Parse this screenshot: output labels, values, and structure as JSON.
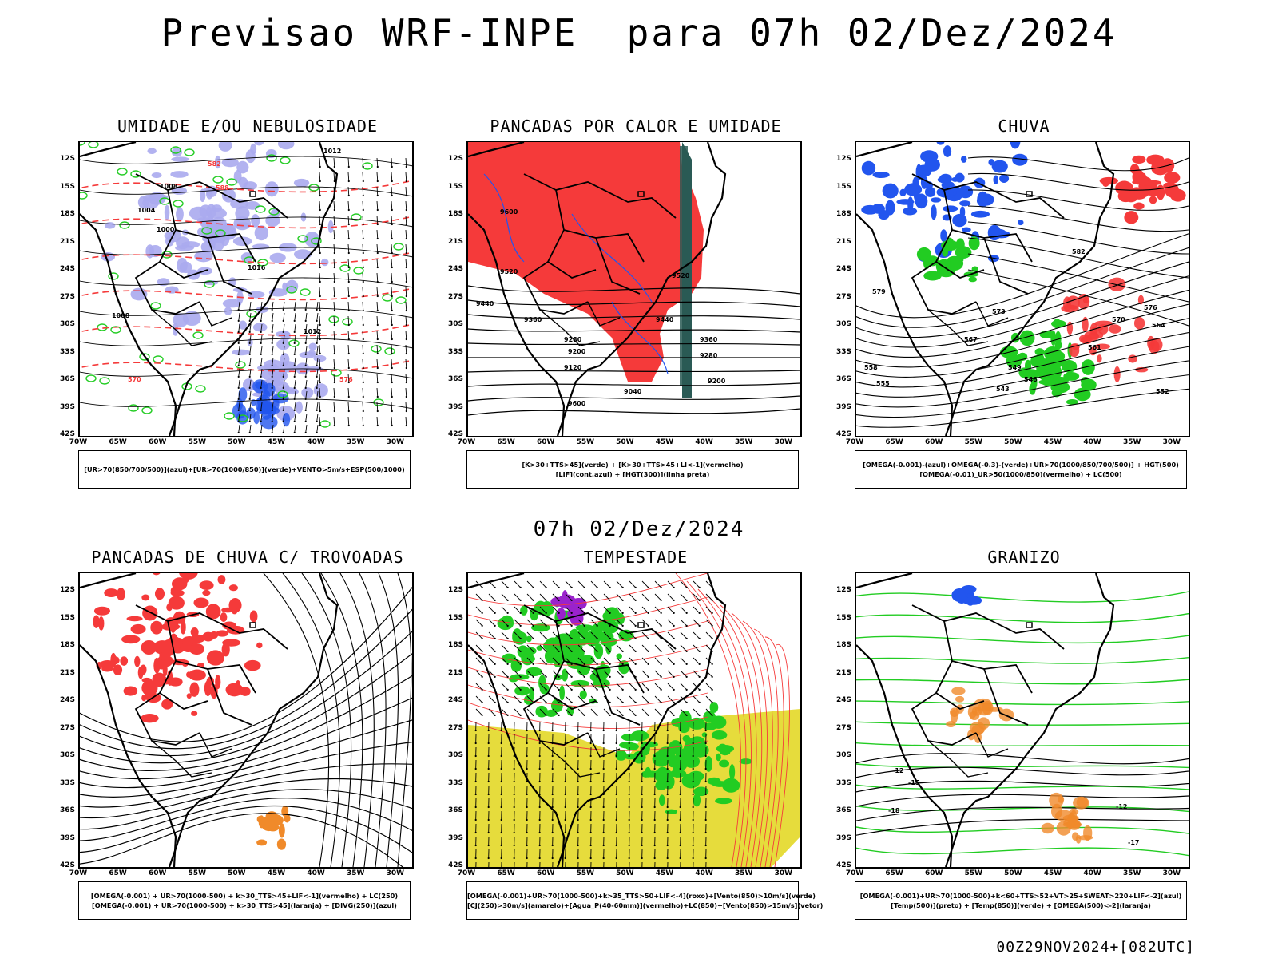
{
  "header": {
    "title": "Previsao WRF-INPE  para 07h 02/Dez/2024",
    "mid_title": "07h 02/Dez/2024",
    "footer": "00Z29NOV2024+[082UTC]"
  },
  "axes": {
    "lat_labels": [
      "12S",
      "15S",
      "18S",
      "21S",
      "24S",
      "27S",
      "30S",
      "33S",
      "36S",
      "39S",
      "42S"
    ],
    "lon_labels": [
      "70W",
      "65W",
      "60W",
      "55W",
      "50W",
      "45W",
      "40W",
      "35W",
      "30W"
    ]
  },
  "colors": {
    "red": "#f53a3a",
    "green": "#22cc22",
    "blue": "#2255ee",
    "lavender": "#aaaaee",
    "yellow": "#e6dc3c",
    "orange": "#f08a2a",
    "purple": "#9a22cc",
    "darkteal": "#2a5a55"
  },
  "panels": [
    {
      "title": "UMIDADE E/OU NEBULOSIDADE",
      "legend": [
        "[UR>70(850/700/500)](azul)+[UR>70(1000/850)](verde)+VENTO>5m/s+ESP(500/1000)"
      ],
      "contour_labels": [
        "1012",
        "1008",
        "1004",
        "1000",
        "1016",
        "1012",
        "1008",
        "570",
        "576",
        "582",
        "588"
      ]
    },
    {
      "title": "PANCADAS POR CALOR E UMIDADE",
      "legend": [
        "[K>30+TTS>45](verde) + [K>30+TTS>45+LI<-1](vermelho)",
        "[LIF](cont.azul) + [HGT(300)](linha preta)"
      ],
      "contour_labels": [
        "9600",
        "9520",
        "9440",
        "9360",
        "9280",
        "9200",
        "9120",
        "9040",
        "9600",
        "9520",
        "9440",
        "9360",
        "9280",
        "9200"
      ]
    },
    {
      "title": "CHUVA",
      "legend": [
        "[OMEGA(-0.001)-(azul)+OMEGA(-0.3)-(verde)+UR>70(1000/850/700/500)] + HGT(500)",
        "[OMEGA(-0.01)_UR>50(1000/850)(vermelho) + LC(500)"
      ],
      "contour_labels": [
        "582",
        "579",
        "576",
        "573",
        "570",
        "567",
        "564",
        "561",
        "558",
        "555",
        "552",
        "549",
        "546",
        "543"
      ]
    },
    {
      "title": "PANCADAS DE CHUVA C/ TROVOADAS",
      "legend": [
        "[OMEGA(-0.001) + UR>70(1000-500) + k>30_TTS>45+LIF<-1](vermelho) + LC(250)",
        "[OMEGA(-0.001) + UR>70(1000-500) + k>30_TTS>45](laranja) + [DIVG(250)](azul)"
      ],
      "contour_labels": []
    },
    {
      "title": "TEMPESTADE",
      "legend": [
        "[OMEGA(-0.001)+UR>70(1000-500)+k>35_TTS>50+LIF<-4](roxo)+[Vento(850)>10m/s](verde)",
        "[CJ(250)>30m/s](amarelo)+[Agua_P(40-60mm)](vermelho)+LC(850)+[Vento(850)>15m/s](vetor)"
      ],
      "contour_labels": []
    },
    {
      "title": "GRANIZO",
      "legend": [
        "[OMEGA(-0.001)+UR>70(1000-500)+k<60+TTS>52+VT>25+SWEAT>220+LIF<-2](azul)",
        "[Temp(500)](preto) + [Temp(850)](verde) + [OMEGA(500)<-2](laranja)"
      ],
      "contour_labels": [
        "-12",
        "-15",
        "-18",
        "-12",
        "-17"
      ]
    }
  ]
}
